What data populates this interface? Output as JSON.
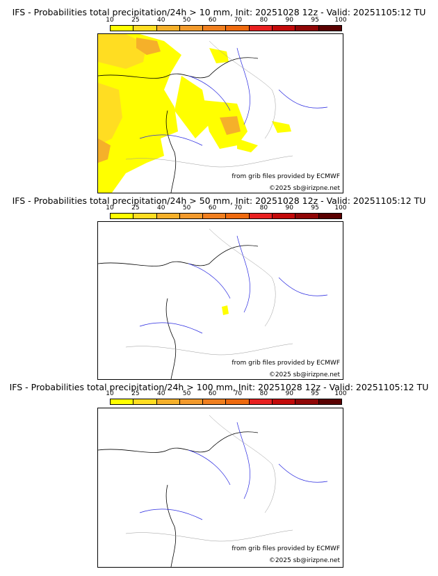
{
  "colorbar": {
    "ticks": [
      "10",
      "25",
      "40",
      "50",
      "60",
      "70",
      "80",
      "90",
      "95",
      "100"
    ],
    "colors": [
      "#ffff00",
      "#ffdd22",
      "#f5b02a",
      "#f29a2c",
      "#f07f1f",
      "#ee6a0f",
      "#e82020",
      "#c20a0a",
      "#8f0606",
      "#5a0000"
    ]
  },
  "panels": [
    {
      "title": "IFS - Probabilities total precipitation/24h > 10 mm, Init: 20251028 12z - Valid: 20251105:12 TU",
      "credit1": "from grib files provided by ECMWF",
      "credit2": "©2025 sb@irizpne.net"
    },
    {
      "title": "IFS - Probabilities total precipitation/24h > 50 mm, Init: 20251028 12z - Valid: 20251105:12 TU",
      "credit1": "from grib files provided by ECMWF",
      "credit2": "©2025 sb@irizpne.net"
    },
    {
      "title": "IFS - Probabilities total precipitation/24h > 100 mm, Init: 20251028 12z - Valid: 20251105:12 TU",
      "credit1": "from grib files provided by ECMWF",
      "credit2": "©2025 sb@irizpne.net"
    }
  ]
}
